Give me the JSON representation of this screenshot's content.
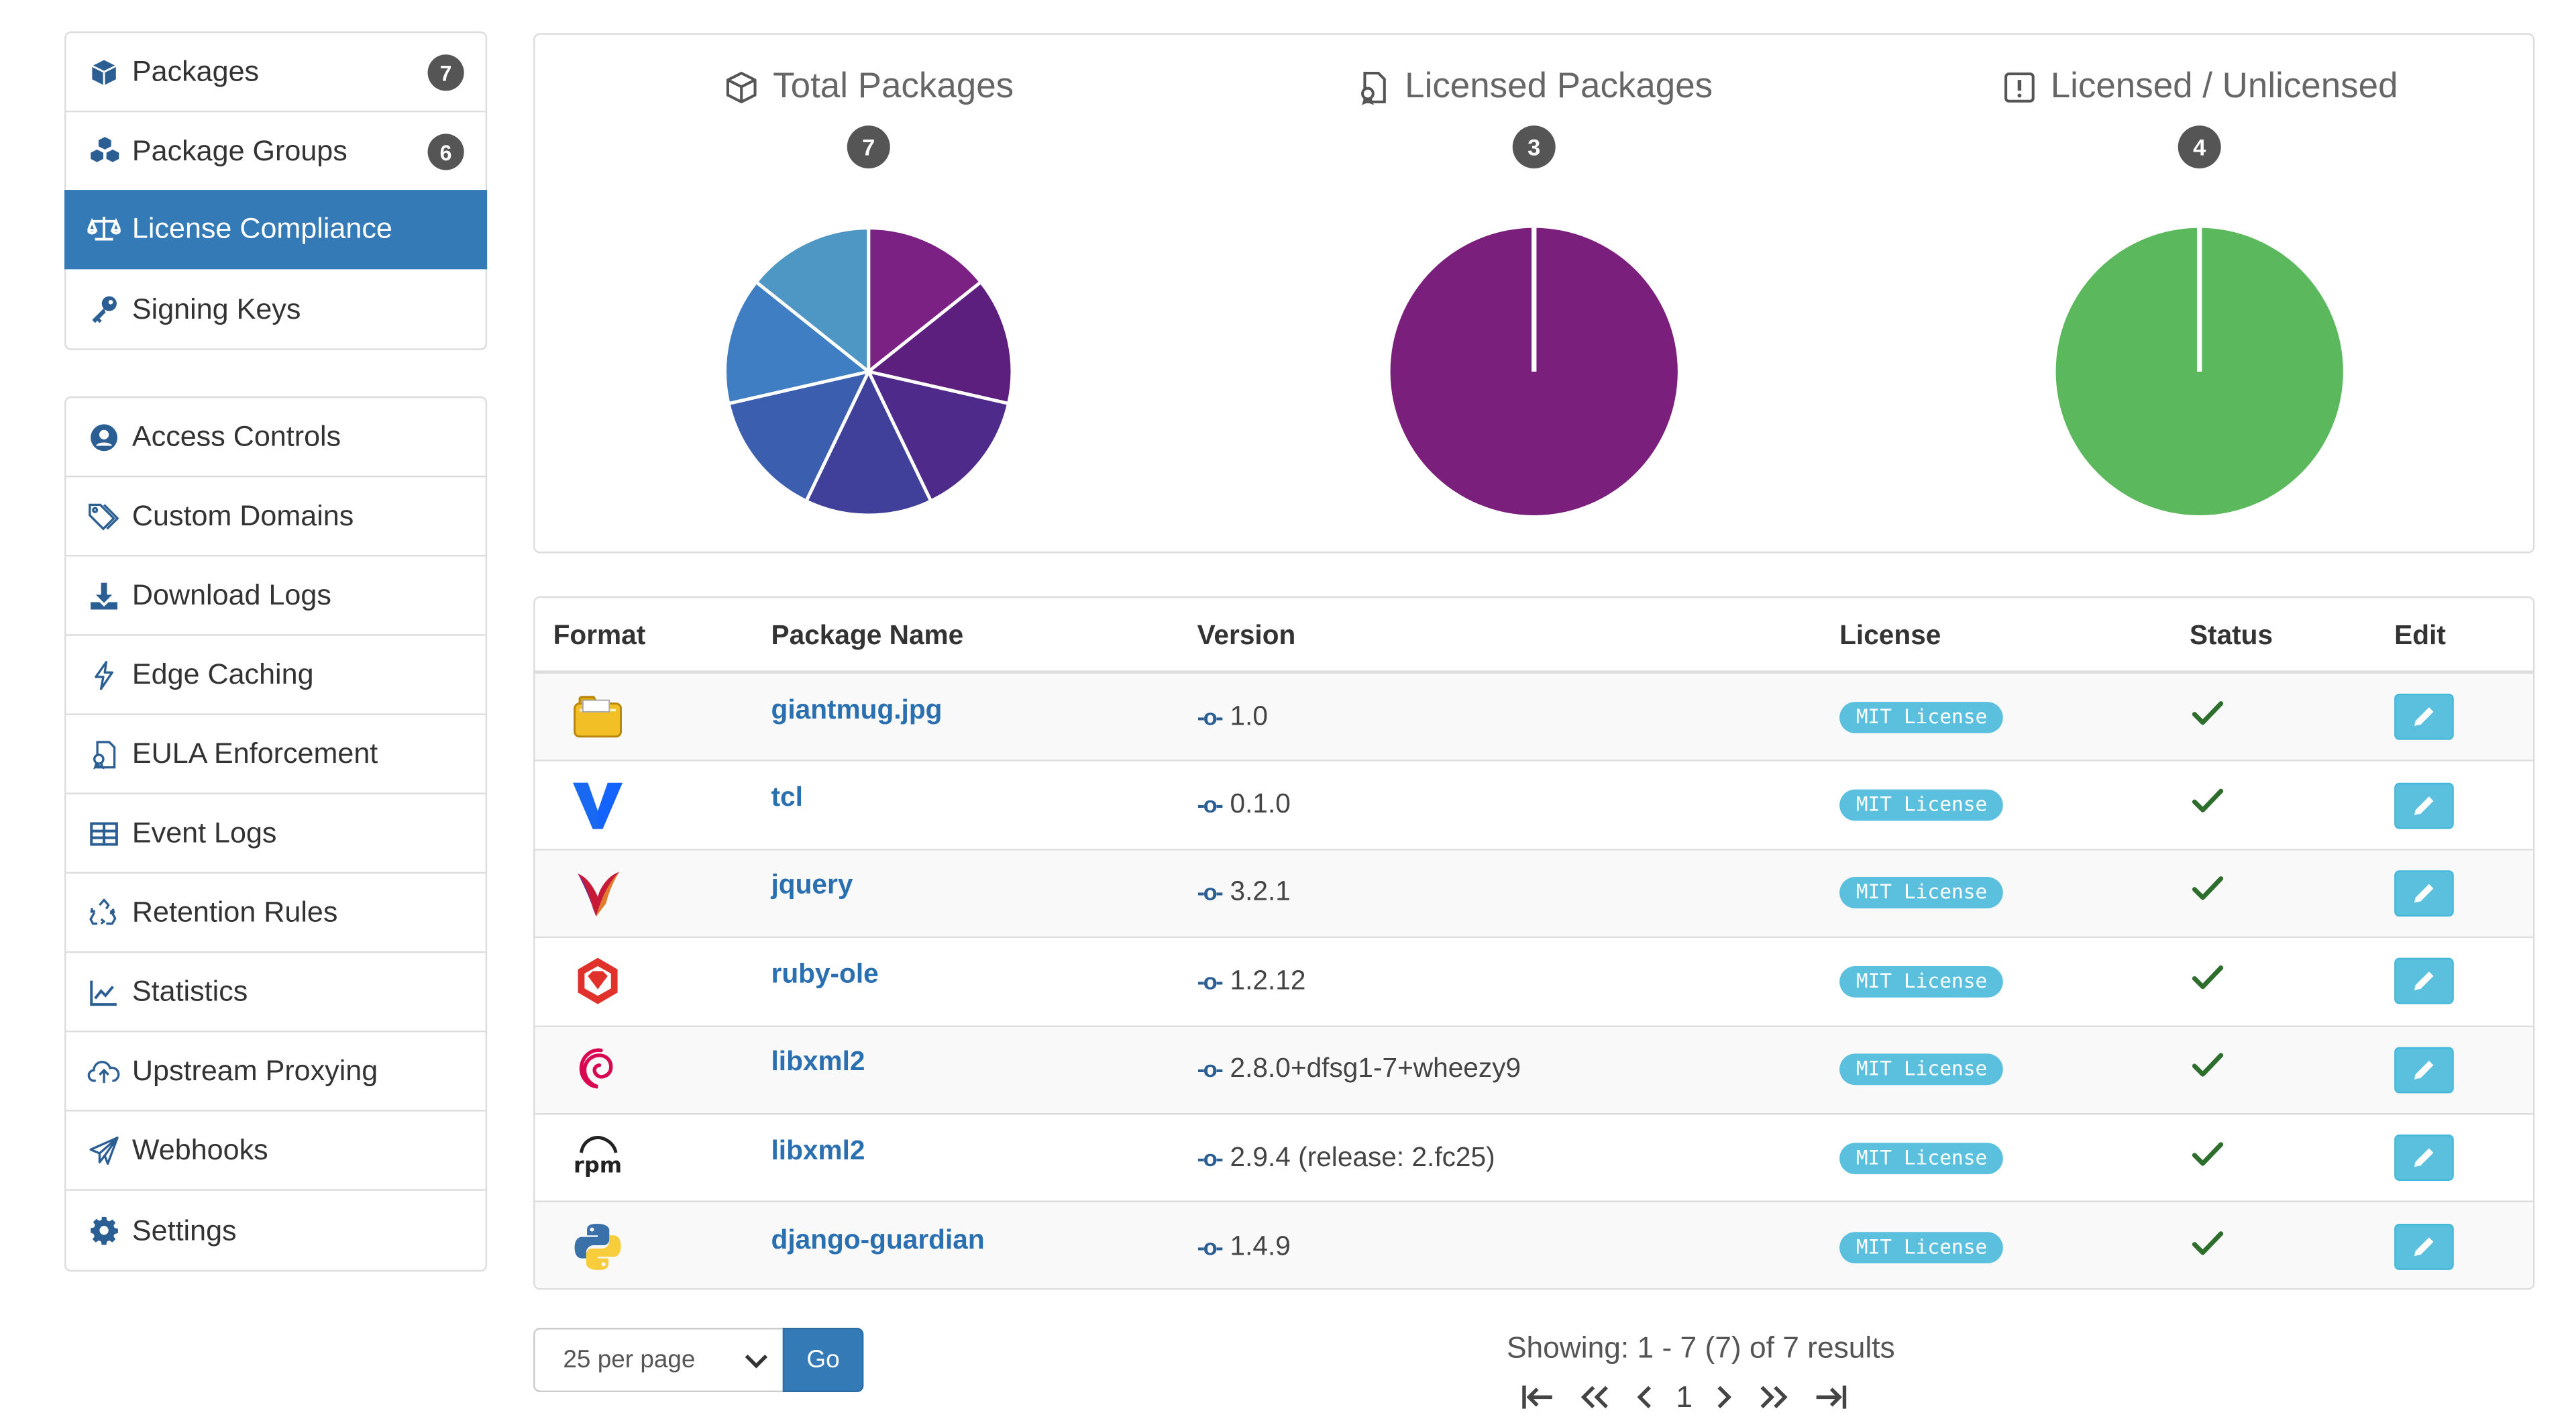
{
  "sidebar": {
    "group1": [
      {
        "label": "Packages",
        "icon": "cube-icon",
        "badge": "7"
      },
      {
        "label": "Package Groups",
        "icon": "cubes-icon",
        "badge": "6"
      },
      {
        "label": "License Compliance",
        "icon": "balance-scale-icon",
        "active": true
      },
      {
        "label": "Signing Keys",
        "icon": "key-icon"
      }
    ],
    "group2": [
      {
        "label": "Access Controls",
        "icon": "user-circle-icon"
      },
      {
        "label": "Custom Domains",
        "icon": "tags-icon"
      },
      {
        "label": "Download Logs",
        "icon": "download-icon"
      },
      {
        "label": "Edge Caching",
        "icon": "bolt-icon"
      },
      {
        "label": "EULA Enforcement",
        "icon": "file-contract-icon"
      },
      {
        "label": "Event Logs",
        "icon": "table-icon"
      },
      {
        "label": "Retention Rules",
        "icon": "recycle-icon"
      },
      {
        "label": "Statistics",
        "icon": "line-chart-icon"
      },
      {
        "label": "Upstream Proxying",
        "icon": "cloud-upload-icon"
      },
      {
        "label": "Webhooks",
        "icon": "paper-plane-icon"
      },
      {
        "label": "Settings",
        "icon": "gear-icon"
      }
    ]
  },
  "charts": [
    {
      "title": "Total Packages",
      "icon": "cube-icon",
      "count": "7"
    },
    {
      "title": "Licensed Packages",
      "icon": "file-license-icon",
      "count": "3"
    },
    {
      "title": "Licensed / Unlicensed",
      "icon": "exclamation-square-icon",
      "count": "4"
    }
  ],
  "chart_data": [
    {
      "type": "pie",
      "title": "Total Packages",
      "values": [
        1,
        1,
        1,
        1,
        1,
        1,
        1
      ],
      "colors": [
        "#7b2183",
        "#5c1f7e",
        "#4e2a8a",
        "#40409a",
        "#3b5fae",
        "#3f7ec2",
        "#4e97c4"
      ]
    },
    {
      "type": "pie",
      "title": "Licensed Packages",
      "values": [
        3
      ],
      "colors": [
        "#7a1f7c"
      ]
    },
    {
      "type": "pie",
      "title": "Licensed / Unlicensed",
      "values": [
        4
      ],
      "colors": [
        "#5cb85c"
      ]
    }
  ],
  "table": {
    "headers": {
      "format": "Format",
      "name": "Package Name",
      "version": "Version",
      "license": "License",
      "status": "Status",
      "edit": "Edit"
    },
    "rows": [
      {
        "format": "raw-icon",
        "name": "giantmug.jpg",
        "version": "1.0",
        "license": "MIT License",
        "status": "ok"
      },
      {
        "format": "vagrant-icon",
        "name": "tcl",
        "version": "0.1.0",
        "license": "MIT License",
        "status": "ok"
      },
      {
        "format": "maven-icon",
        "name": "jquery",
        "version": "3.2.1",
        "license": "MIT License",
        "status": "ok"
      },
      {
        "format": "ruby-icon",
        "name": "ruby-ole",
        "version": "1.2.12",
        "license": "MIT License",
        "status": "ok"
      },
      {
        "format": "debian-icon",
        "name": "libxml2",
        "version": "2.8.0+dfsg1-7+wheezy9",
        "license": "MIT License",
        "status": "ok"
      },
      {
        "format": "rpm-icon",
        "name": "libxml2",
        "version": "2.9.4 (release: 2.fc25)",
        "license": "MIT License",
        "status": "ok"
      },
      {
        "format": "python-icon",
        "name": "django-guardian",
        "version": "1.4.9",
        "license": "MIT License",
        "status": "ok"
      }
    ]
  },
  "footer": {
    "per_page": "25 per page",
    "go": "Go",
    "showing": "Showing: 1 - 7 (7) of 7 results",
    "page": "1"
  }
}
